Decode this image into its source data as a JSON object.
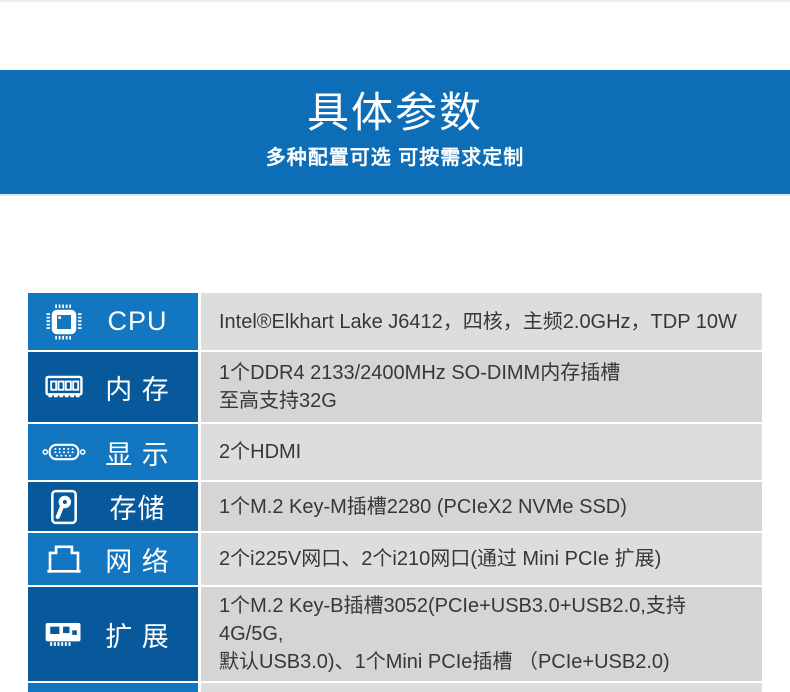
{
  "hero": {
    "title": "具体参数",
    "subtitle": "多种配置可选 可按需求定制"
  },
  "colors": {
    "band_blue": "#0d6eb7",
    "row_blue_light": "#1376c1",
    "row_blue_dark": "#07599c",
    "row_gray_light": "#dddddd",
    "row_gray_dark": "#d5d5d5",
    "text_dark": "#373737",
    "text_white": "#ffffff"
  },
  "table": {
    "rows": [
      {
        "icon": "cpu-icon",
        "label": "CPU",
        "text": "Intel®Elkhart Lake J6412，四核，主频2.0GHz，TDP 10W"
      },
      {
        "icon": "ram-icon",
        "label": "内 存",
        "text": "1个DDR4 2133/2400MHz SO-DIMM内存插槽\n至高支持32G"
      },
      {
        "icon": "display-icon",
        "label": "显 示",
        "text": "2个HDMI"
      },
      {
        "icon": "storage-icon",
        "label": "存储",
        "text": "1个M.2 Key-M插槽2280 (PCIeX2 NVMe SSD)"
      },
      {
        "icon": "network-icon",
        "label": "网 络",
        "text": "2个i225V网口、2个i210网口(通过 Mini PCIe 扩展)"
      },
      {
        "icon": "expansion-icon",
        "label": "扩 展",
        "text": "1个M.2 Key-B插槽3052(PCIe+USB3.0+USB2.0,支持4G/5G,\n默认USB3.0)、1个Mini PCIe插槽 （PCIe+USB2.0)"
      },
      {
        "icon": "",
        "label": "",
        "text": ""
      }
    ]
  }
}
